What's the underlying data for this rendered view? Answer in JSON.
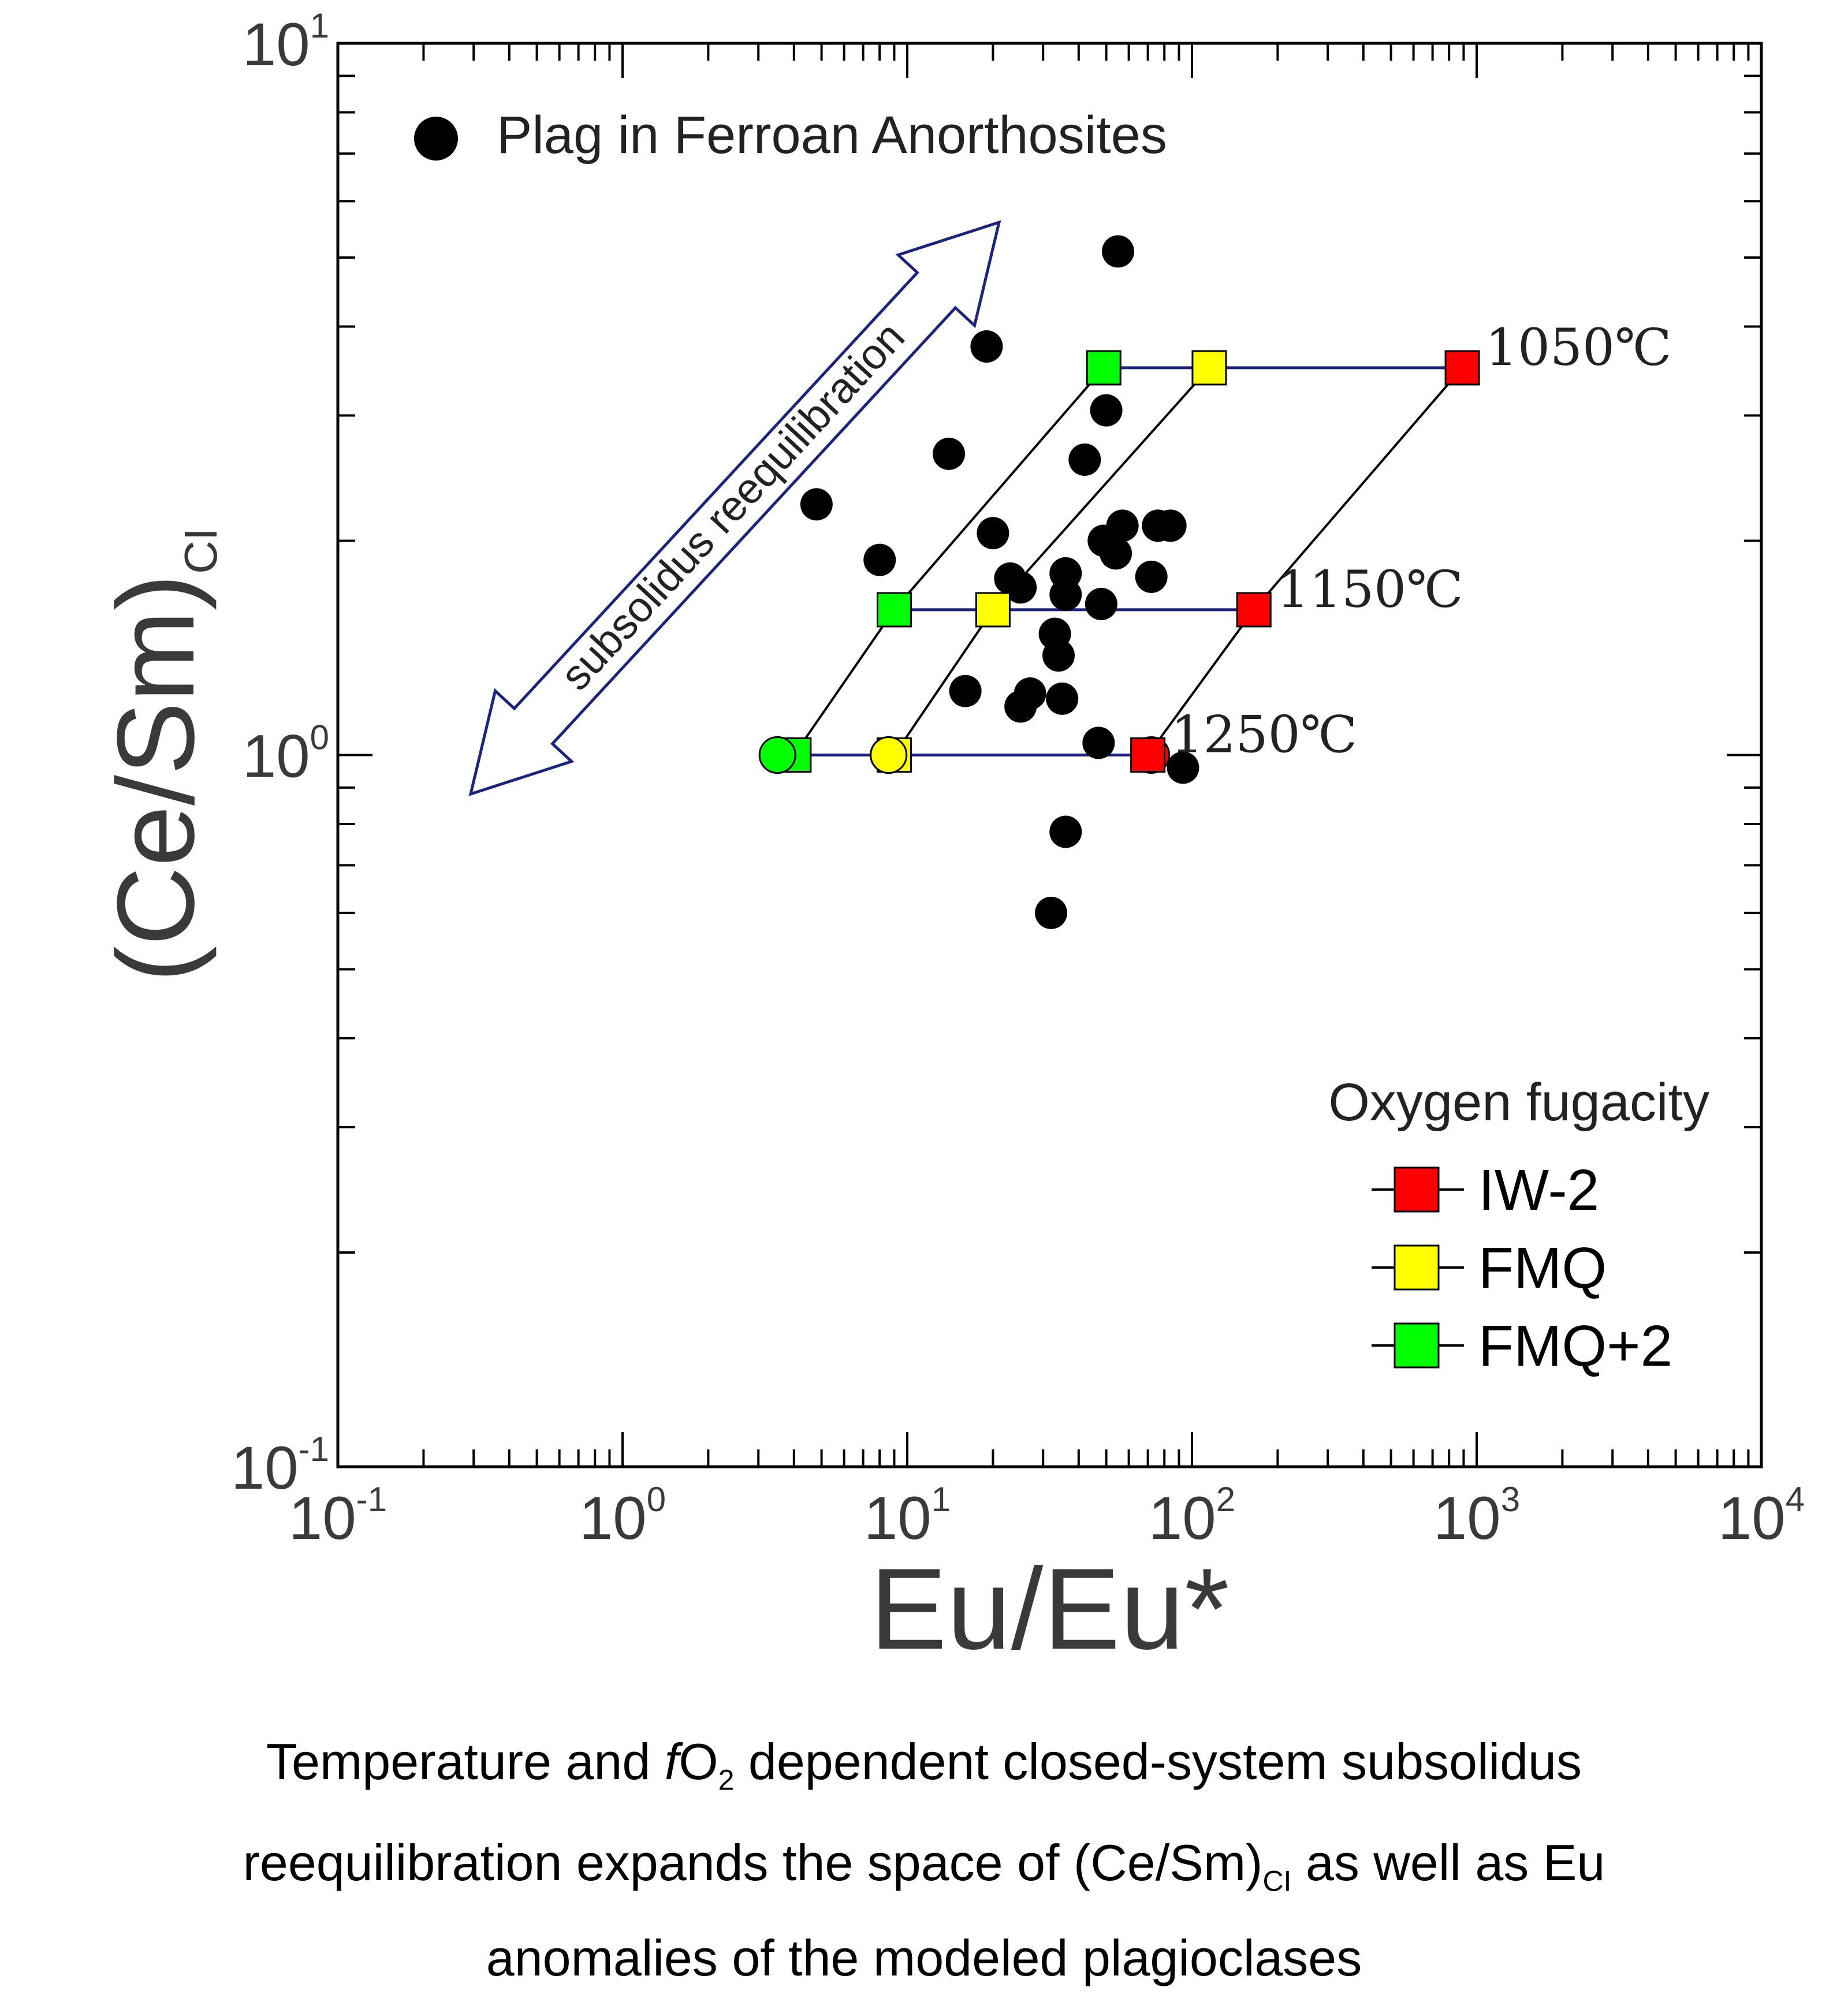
{
  "chart_data": {
    "type": "scatter",
    "title": "",
    "xlabel": "Eu/Eu*",
    "ylabel_main": "(Ce/Sm)",
    "ylabel_sub": "CI",
    "x_scale": "log",
    "y_scale": "log",
    "xlim": [
      0.1,
      10000
    ],
    "ylim": [
      0.1,
      10
    ],
    "x_tick_labels": [
      {
        "value": 0.1,
        "base": "10",
        "exp": "-1"
      },
      {
        "value": 1,
        "base": "10",
        "exp": "0"
      },
      {
        "value": 10,
        "base": "10",
        "exp": "1"
      },
      {
        "value": 100,
        "base": "10",
        "exp": "2"
      },
      {
        "value": 1000,
        "base": "10",
        "exp": "3"
      },
      {
        "value": 10000,
        "base": "10",
        "exp": "4"
      }
    ],
    "y_tick_labels": [
      {
        "value": 0.1,
        "base": "10",
        "exp": "-1"
      },
      {
        "value": 1,
        "base": "10",
        "exp": "0"
      },
      {
        "value": 10,
        "base": "10",
        "exp": "1"
      }
    ],
    "grid": false,
    "samples": {
      "name": "Plag in Ferroan Anorthosites",
      "color": "#000000",
      "points": [
        [
          55,
          5.1
        ],
        [
          19,
          3.75
        ],
        [
          50,
          3.05
        ],
        [
          14,
          2.65
        ],
        [
          42,
          2.6
        ],
        [
          4.8,
          2.25
        ],
        [
          20,
          2.05
        ],
        [
          57,
          2.1
        ],
        [
          49,
          2.0
        ],
        [
          54,
          1.92
        ],
        [
          76,
          2.1
        ],
        [
          84,
          2.1
        ],
        [
          8,
          1.88
        ],
        [
          23,
          1.77
        ],
        [
          25,
          1.72
        ],
        [
          36,
          1.8
        ],
        [
          72,
          1.78
        ],
        [
          36,
          1.68
        ],
        [
          48,
          1.63
        ],
        [
          33,
          1.48
        ],
        [
          34,
          1.38
        ],
        [
          16,
          1.23
        ],
        [
          27,
          1.22
        ],
        [
          35,
          1.2
        ],
        [
          25,
          1.17
        ],
        [
          47,
          1.04
        ],
        [
          93,
          0.96
        ],
        [
          36,
          0.78
        ],
        [
          32,
          0.6
        ]
      ]
    },
    "isotherms": [
      {
        "label": "1050℃",
        "y": 3.5,
        "x": {
          "FMQ+2": 49,
          "FMQ": 115,
          "IW-2": 890
        }
      },
      {
        "label": "1150℃",
        "y": 1.6,
        "x": {
          "FMQ+2": 9,
          "FMQ": 20,
          "IW-2": 165
        }
      },
      {
        "label": "1250℃",
        "y": 1.0,
        "x": {
          "FMQ+2": 4,
          "FMQ": 9,
          "IW-2": 70
        }
      }
    ],
    "extra_markers": [
      {
        "x": 3.5,
        "y": 1.0,
        "buffer": "FMQ+2",
        "shape": "circle"
      },
      {
        "x": 8.6,
        "y": 1.0,
        "buffer": "FMQ",
        "shape": "circle"
      },
      {
        "x": 72,
        "y": 1.0,
        "buffer": "IW-2",
        "shape": "circle"
      }
    ],
    "buffer_colors": {
      "IW-2": "#ff0000",
      "FMQ": "#ffff00",
      "FMQ+2": "#00ff00"
    },
    "isotherm_line_color": "#1a237e",
    "legend": {
      "placement": "bottom-right",
      "title": "Oxygen fugacity",
      "entries": [
        {
          "label": "IW-2",
          "color": "#ff0000"
        },
        {
          "label": "FMQ",
          "color": "#ffff00"
        },
        {
          "label": "FMQ+2",
          "color": "#00ff00"
        }
      ]
    },
    "sample_legend_placement": "top-left",
    "arrow_annotation": {
      "text": "subsolidus reequilibration",
      "color": "#1a237e"
    }
  },
  "caption": {
    "line1_a": "Temperature and ",
    "line1_f": "f",
    "line1_o": "O",
    "line1_sub": "2",
    "line1_b": " dependent closed-system subsolidus",
    "line2_a": "reequilibration expands the space of (Ce/Sm)",
    "line2_sub": "CI",
    "line2_b": " as well as Eu",
    "line3": "anomalies of the modeled plagioclases"
  }
}
